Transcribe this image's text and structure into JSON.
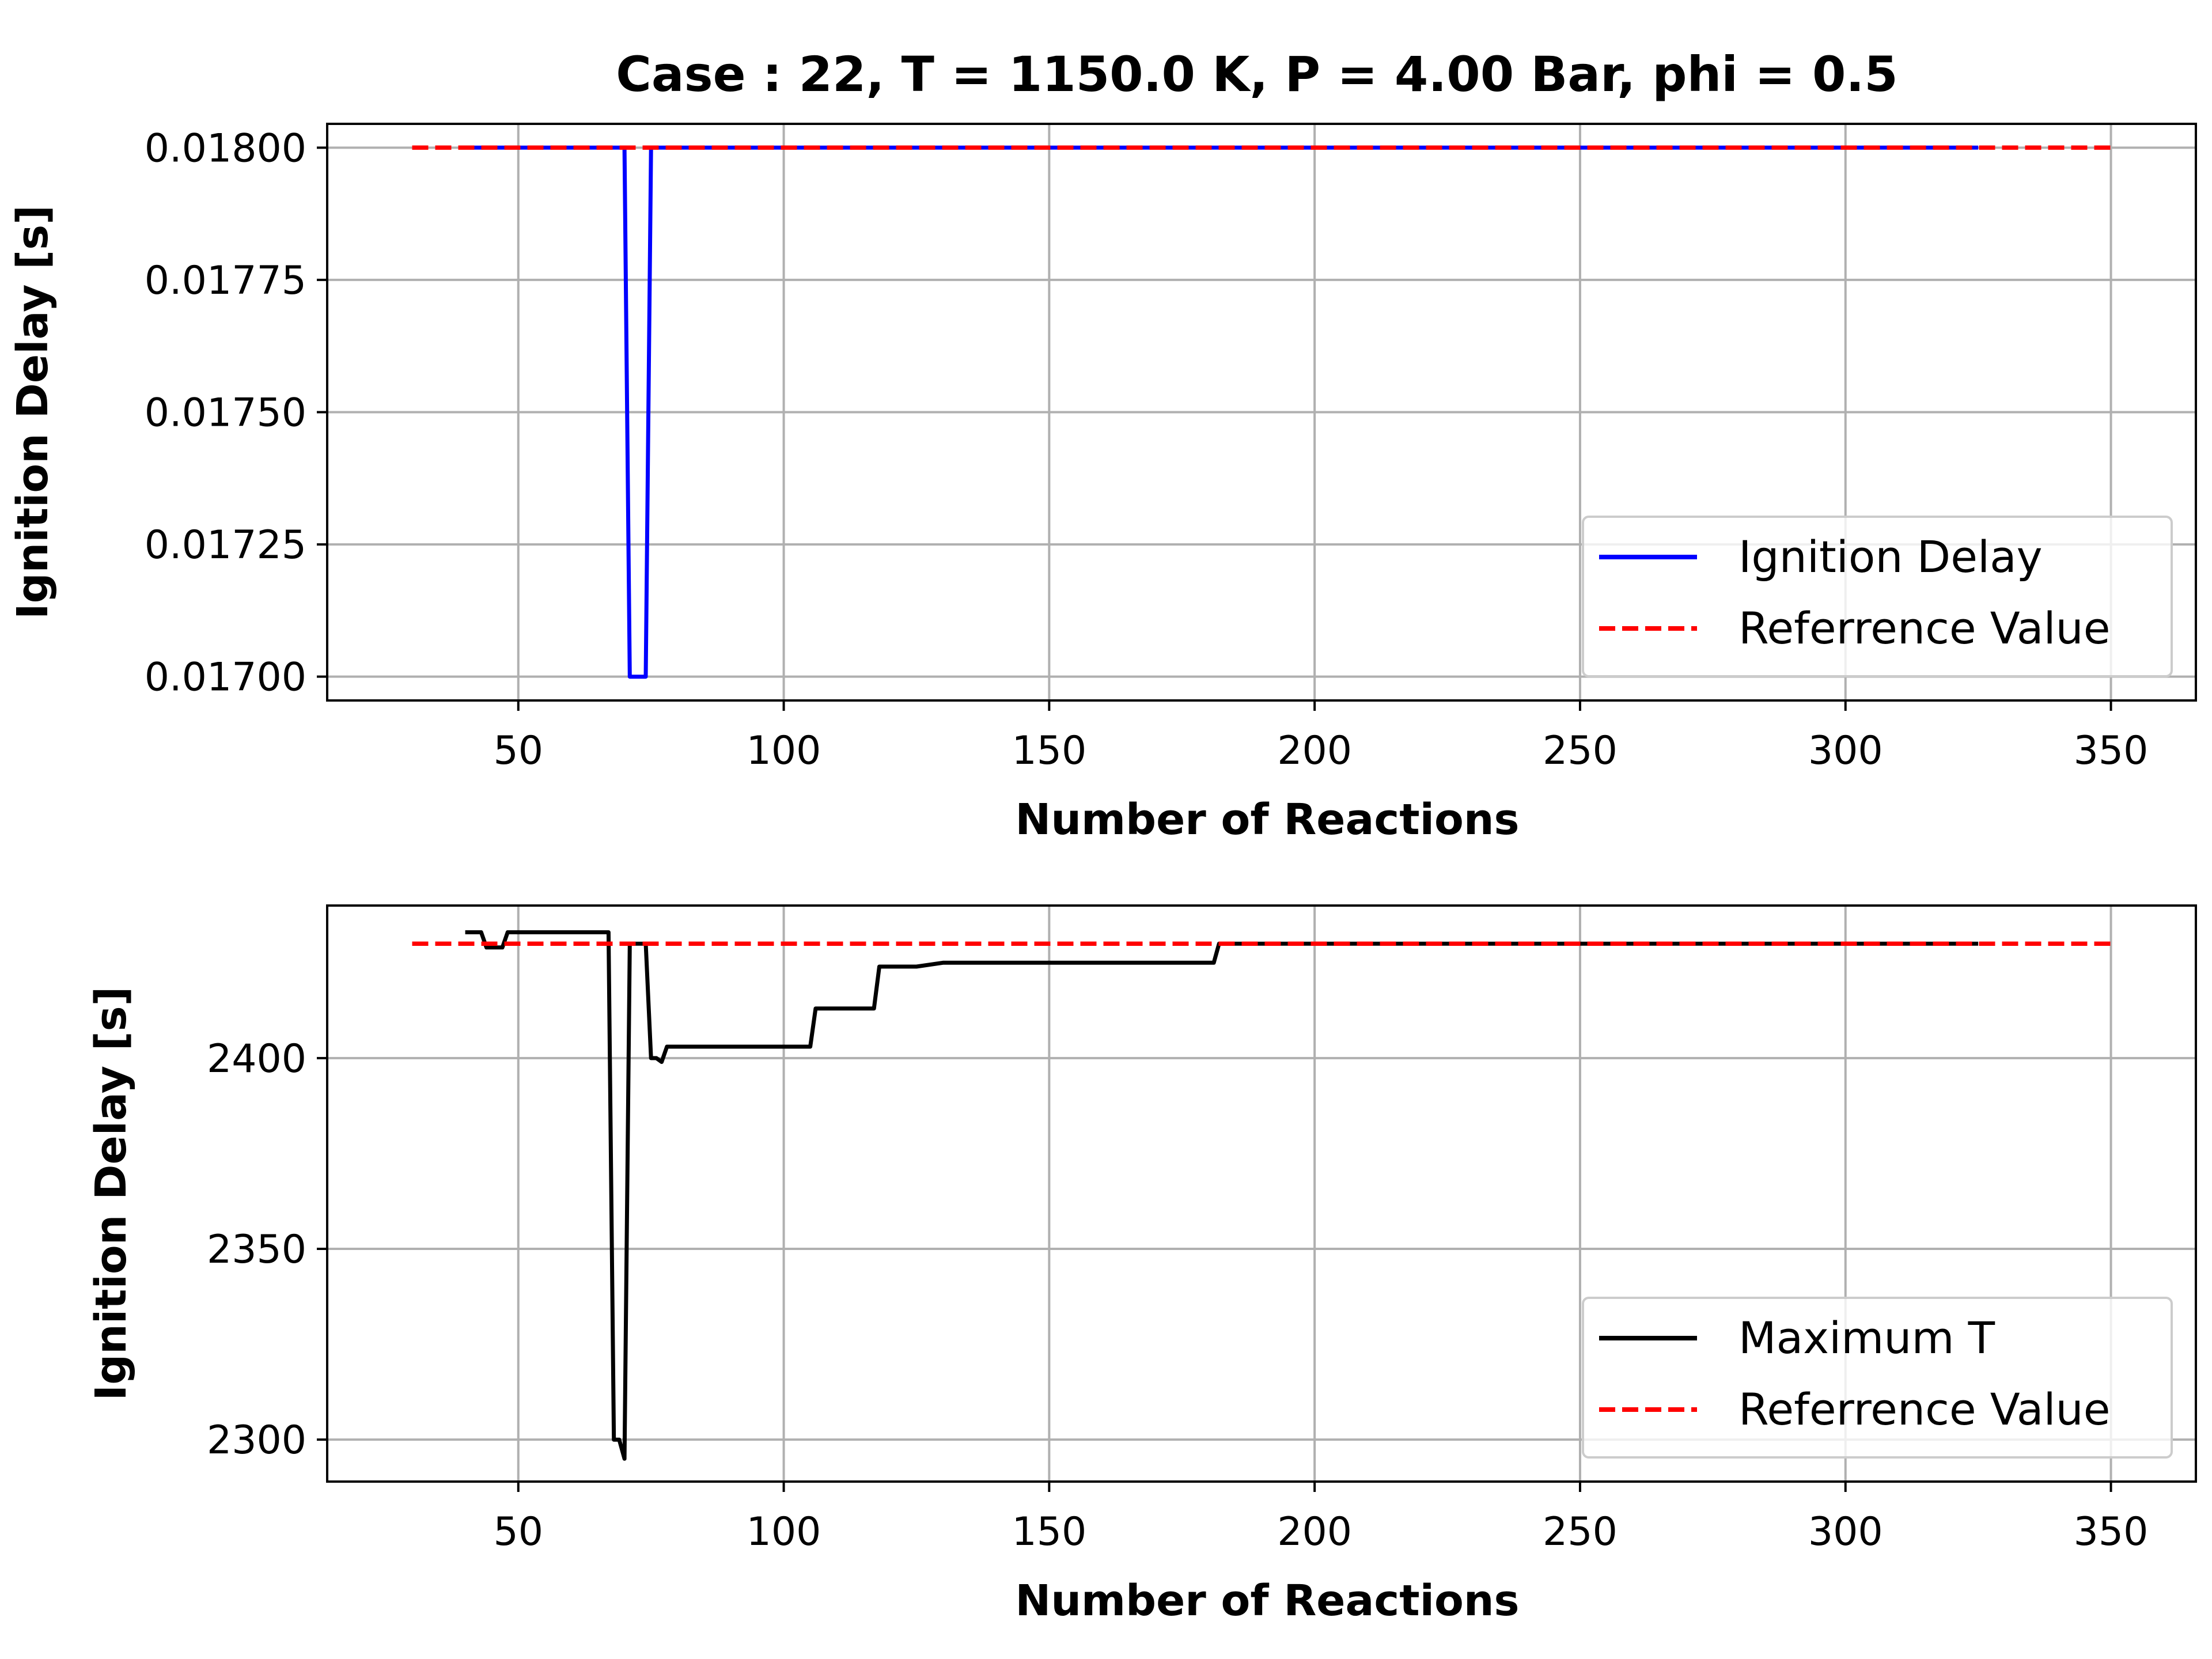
{
  "figure_title": "Case : 22, T = 1150.0 K, P = 4.00 Bar, phi = 0.5",
  "chart_data": [
    {
      "type": "line",
      "title": "Case : 22, T = 1150.0 K, P = 4.00 Bar, phi = 0.5",
      "xlabel": "Number of Reactions",
      "ylabel": "Ignition Delay [s]",
      "xlim": [
        14,
        366
      ],
      "ylim": [
        0.016955,
        0.018045
      ],
      "x_ticks": [
        50,
        100,
        150,
        200,
        250,
        300,
        350
      ],
      "x_tick_labels": [
        "50",
        "100",
        "150",
        "200",
        "250",
        "300",
        "350"
      ],
      "y_ticks": [
        0.017,
        0.01725,
        0.0175,
        0.01775,
        0.018
      ],
      "y_tick_labels": [
        "0.01700",
        "0.01725",
        "0.01750",
        "0.01775",
        "0.01800"
      ],
      "grid": true,
      "legend_position": "lower-right",
      "series": [
        {
          "name": "Ignition Delay",
          "color": "#0000ff",
          "style": "solid",
          "x": [
            40,
            70,
            71,
            74,
            75,
            325
          ],
          "y": [
            0.018,
            0.018,
            0.017,
            0.017,
            0.018,
            0.018
          ]
        },
        {
          "name": "Referrence Value",
          "color": "#ff0000",
          "style": "dashed",
          "x": [
            30,
            350
          ],
          "y": [
            0.018,
            0.018
          ]
        }
      ]
    },
    {
      "type": "line",
      "xlabel": "Number of Reactions",
      "ylabel": "Ignition Delay [s]",
      "xlim": [
        14,
        366
      ],
      "ylim": [
        2289,
        2440
      ],
      "x_ticks": [
        50,
        100,
        150,
        200,
        250,
        300,
        350
      ],
      "x_tick_labels": [
        "50",
        "100",
        "150",
        "200",
        "250",
        "300",
        "350"
      ],
      "y_ticks": [
        2300,
        2350,
        2400
      ],
      "y_tick_labels": [
        "2300",
        "2350",
        "2400"
      ],
      "grid": true,
      "legend_position": "lower-right",
      "series": [
        {
          "name": "Maximum T",
          "color": "#000000",
          "style": "solid",
          "x": [
            40,
            43,
            44,
            47,
            48,
            67,
            68,
            69,
            70,
            71,
            72,
            73,
            74,
            75,
            76,
            77,
            78,
            97,
            98,
            105,
            106,
            110,
            111,
            117,
            118,
            125,
            130,
            140,
            160,
            167,
            181,
            182,
            325
          ],
          "y": [
            2433,
            2433,
            2429,
            2429,
            2433,
            2433,
            2300,
            2300,
            2295,
            2430,
            2430,
            2430,
            2430,
            2400,
            2400,
            2399,
            2403,
            2403,
            2403,
            2403,
            2413,
            2413,
            2413,
            2413,
            2424,
            2424,
            2425,
            2425,
            2425,
            2425,
            2425,
            2430,
            2430
          ]
        },
        {
          "name": "Referrence Value",
          "color": "#ff0000",
          "style": "dashed",
          "x": [
            30,
            350
          ],
          "y": [
            2430,
            2430
          ]
        }
      ]
    }
  ]
}
